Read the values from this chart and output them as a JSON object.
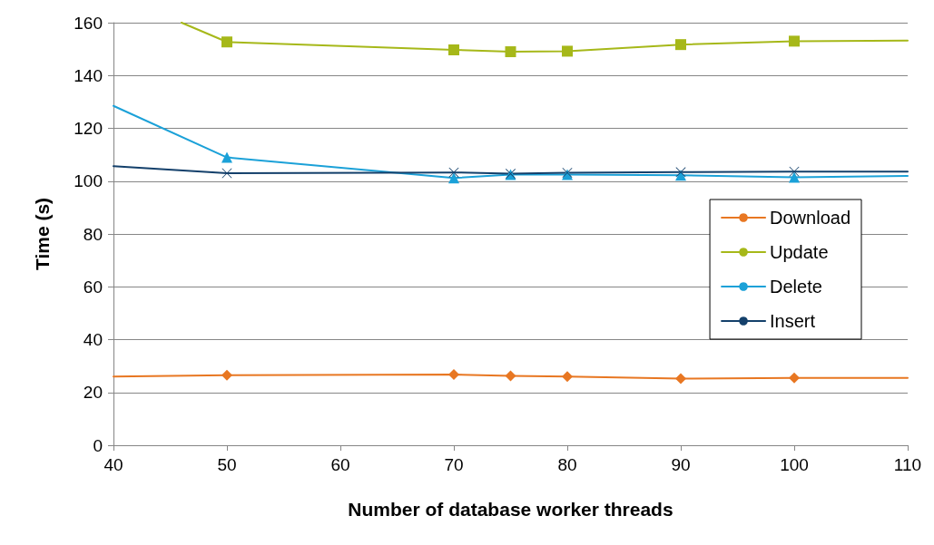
{
  "chart_data": {
    "type": "line",
    "xlabel": "Number of database worker threads",
    "ylabel": "Time (s)",
    "xlim": [
      40,
      110
    ],
    "xticks": [
      40,
      50,
      60,
      70,
      80,
      90,
      100,
      110
    ],
    "ylim": [
      0,
      160
    ],
    "yticks": [
      0,
      20,
      40,
      60,
      80,
      100,
      120,
      140,
      160
    ],
    "grid": "y",
    "legend": "right",
    "line_style": "solid",
    "series": [
      {
        "name": "Download",
        "color": "#e87722",
        "marker": "diamond",
        "x": [
          40,
          50,
          70,
          75,
          80,
          90,
          100,
          110
        ],
        "values": [
          26,
          26.5,
          26.8,
          26.3,
          26,
          25.2,
          25.5,
          25.5
        ]
      },
      {
        "name": "Update",
        "color": "#a6b819",
        "marker": "square",
        "x": [
          46,
          50,
          70,
          75,
          80,
          90,
          100,
          110
        ],
        "values": [
          160,
          152.7,
          149.7,
          149,
          149.2,
          151.7,
          153,
          153.2
        ]
      },
      {
        "name": "Delete",
        "color": "#1ba1d8",
        "marker": "triangle",
        "x": [
          40,
          50,
          70,
          75,
          80,
          90,
          100,
          110
        ],
        "values": [
          128.5,
          109,
          101.2,
          102.5,
          102.5,
          102.2,
          101.5,
          102
        ]
      },
      {
        "name": "Insert",
        "color": "#14406b",
        "marker": "cross",
        "x": [
          40,
          50,
          70,
          75,
          80,
          90,
          100,
          110
        ],
        "values": [
          105.7,
          103,
          103.3,
          102.8,
          103.2,
          103.4,
          103.6,
          103.6
        ]
      }
    ]
  }
}
